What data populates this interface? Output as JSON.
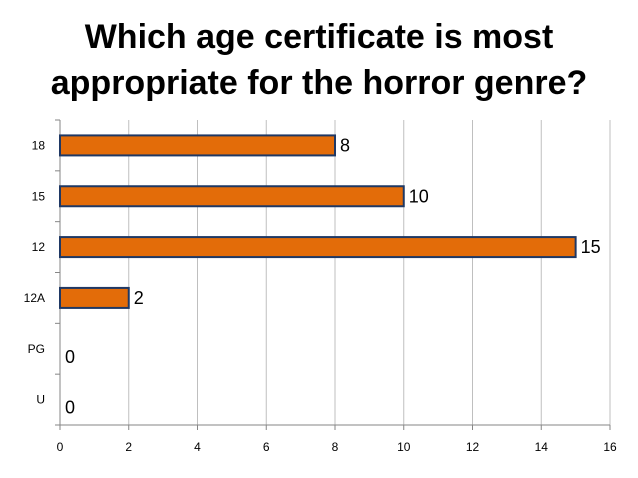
{
  "chart_data": {
    "type": "bar",
    "orientation": "horizontal",
    "title_lines": [
      "Which age certificate is most",
      "appropriate for the horror genre?"
    ],
    "categories": [
      "18",
      "15",
      "12",
      "12A",
      "PG",
      "U"
    ],
    "values": [
      8,
      10,
      15,
      2,
      0,
      0
    ],
    "x_ticks": [
      0,
      2,
      4,
      6,
      8,
      10,
      12,
      14,
      16
    ],
    "xlim": [
      0,
      16
    ],
    "grid": true,
    "legend": "none",
    "bar_color": "#E36C09",
    "bar_border_color": "#1F3864"
  }
}
